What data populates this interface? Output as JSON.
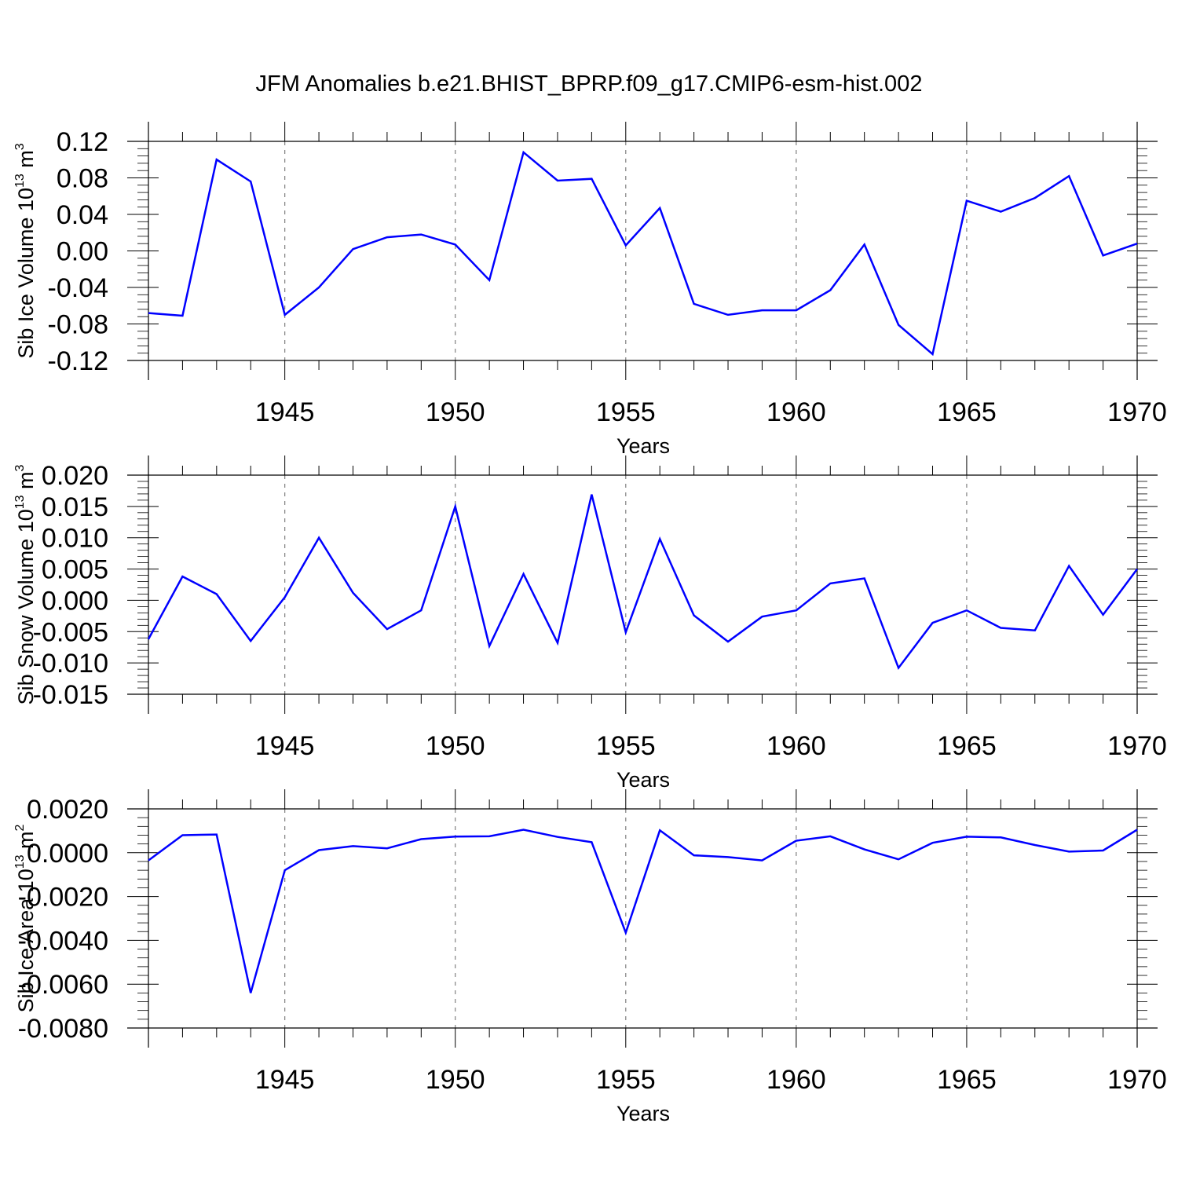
{
  "title": "JFM Anomalies b.e21.BHIST_BPRP.f09_g17.CMIP6-esm-hist.002",
  "colors": {
    "line": "#0000ff",
    "axis": "#000000",
    "grid": "#808080"
  },
  "chart_data": [
    {
      "type": "line",
      "ylabel": {
        "text": "Sib Ice Volume 10",
        "exp": "13",
        "unit": " m",
        "unit_exp": "3"
      },
      "xlabel": "Years",
      "xlim": [
        1941,
        1970
      ],
      "ylim": [
        -0.12,
        0.12
      ],
      "yticks": [
        "0.12",
        "0.08",
        "0.04",
        "0.00",
        "-0.04",
        "-0.08",
        "-0.12"
      ],
      "ytick_values": [
        0.12,
        0.08,
        0.04,
        0.0,
        -0.04,
        -0.08,
        -0.12
      ],
      "xticks": [
        "1945",
        "1950",
        "1955",
        "1960",
        "1965",
        "1970"
      ],
      "xtick_values": [
        1945,
        1950,
        1955,
        1960,
        1965,
        1970
      ],
      "x": [
        1941,
        1942,
        1943,
        1944,
        1945,
        1946,
        1947,
        1948,
        1949,
        1950,
        1951,
        1952,
        1953,
        1954,
        1955,
        1956,
        1957,
        1958,
        1959,
        1960,
        1961,
        1962,
        1963,
        1964,
        1965,
        1966,
        1967,
        1968,
        1969,
        1970
      ],
      "values": [
        -0.068,
        -0.071,
        0.1,
        0.076,
        -0.07,
        -0.04,
        0.002,
        0.015,
        0.018,
        0.007,
        -0.032,
        0.108,
        0.077,
        0.079,
        0.006,
        0.047,
        -0.058,
        -0.07,
        -0.065,
        -0.065,
        -0.043,
        0.007,
        -0.081,
        -0.113,
        0.055,
        0.043,
        0.058,
        0.082,
        -0.005,
        0.008
      ]
    },
    {
      "type": "line",
      "ylabel": {
        "text": "Sib Snow Volume 10",
        "exp": "13",
        "unit": " m",
        "unit_exp": "3"
      },
      "xlabel": "Years",
      "xlim": [
        1941,
        1970
      ],
      "ylim": [
        -0.015,
        0.02
      ],
      "yticks": [
        "0.020",
        "0.015",
        "0.010",
        "0.005",
        "0.000",
        "-0.005",
        "-0.010",
        "-0.015"
      ],
      "ytick_values": [
        0.02,
        0.015,
        0.01,
        0.005,
        0.0,
        -0.005,
        -0.01,
        -0.015
      ],
      "xticks": [
        "1945",
        "1950",
        "1955",
        "1960",
        "1965",
        "1970"
      ],
      "xtick_values": [
        1945,
        1950,
        1955,
        1960,
        1965,
        1970
      ],
      "x": [
        1941,
        1942,
        1943,
        1944,
        1945,
        1946,
        1947,
        1948,
        1949,
        1950,
        1951,
        1952,
        1953,
        1954,
        1955,
        1956,
        1957,
        1958,
        1959,
        1960,
        1961,
        1962,
        1963,
        1964,
        1965,
        1966,
        1967,
        1968,
        1969,
        1970
      ],
      "values": [
        -0.0062,
        0.0038,
        0.001,
        -0.0065,
        0.0005,
        0.01,
        0.0012,
        -0.0046,
        -0.0016,
        0.015,
        -0.0073,
        0.0042,
        -0.0068,
        0.0169,
        -0.0051,
        0.0098,
        -0.0024,
        -0.0066,
        -0.0026,
        -0.0016,
        0.0027,
        0.0035,
        -0.0108,
        -0.0036,
        -0.0016,
        -0.0044,
        -0.0048,
        0.0055,
        -0.0023,
        0.005
      ]
    },
    {
      "type": "line",
      "ylabel": {
        "text": "Sib Ice Area 10",
        "exp": "13",
        "unit": " m",
        "unit_exp": "2"
      },
      "xlabel": "Years",
      "xlim": [
        1941,
        1970
      ],
      "ylim": [
        -0.008,
        0.002
      ],
      "yticks": [
        "0.0020",
        "0.0000",
        "-0.0020",
        "-0.0040",
        "-0.0060",
        "-0.0080"
      ],
      "ytick_values": [
        0.002,
        0.0,
        -0.002,
        -0.004,
        -0.006,
        -0.008
      ],
      "xticks": [
        "1945",
        "1950",
        "1955",
        "1960",
        "1965",
        "1970"
      ],
      "xtick_values": [
        1945,
        1950,
        1955,
        1960,
        1965,
        1970
      ],
      "x": [
        1941,
        1942,
        1943,
        1944,
        1945,
        1946,
        1947,
        1948,
        1949,
        1950,
        1951,
        1952,
        1953,
        1954,
        1955,
        1956,
        1957,
        1958,
        1959,
        1960,
        1961,
        1962,
        1963,
        1964,
        1965,
        1966,
        1967,
        1968,
        1969,
        1970
      ],
      "values": [
        -0.00035,
        0.0008,
        0.00083,
        -0.0064,
        -0.0008,
        0.00012,
        0.0003,
        0.0002,
        0.00062,
        0.00074,
        0.00075,
        0.00105,
        0.00072,
        0.00048,
        -0.00365,
        0.00102,
        -0.00012,
        -0.0002,
        -0.00035,
        0.00055,
        0.00075,
        0.00015,
        -0.0003,
        0.00045,
        0.00073,
        0.0007,
        0.00035,
        5e-05,
        0.0001,
        0.00105
      ]
    }
  ]
}
